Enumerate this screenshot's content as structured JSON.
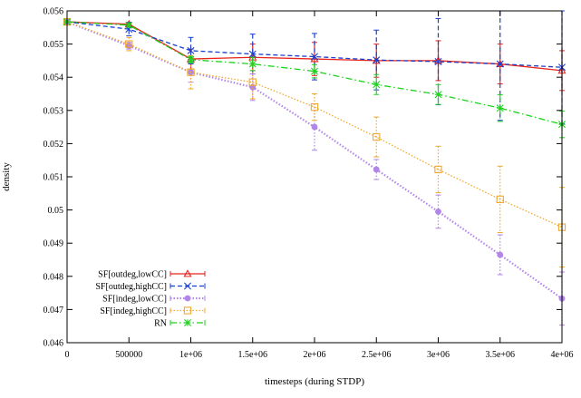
{
  "chart_data": {
    "type": "line",
    "title": "",
    "xlabel": "timesteps (during STDP)",
    "ylabel": "density",
    "xlim": [
      0,
      4000000
    ],
    "ylim": [
      0.046,
      0.056
    ],
    "grid": false,
    "legend_position": "bottom-left",
    "x": [
      0,
      500000,
      1000000,
      1500000,
      2000000,
      2500000,
      3000000,
      3500000,
      4000000
    ],
    "x_tick_labels": [
      "0",
      "500000",
      "1e+06",
      "1.5e+06",
      "2e+06",
      "2.5e+06",
      "3e+06",
      "3.5e+06",
      "4e+06"
    ],
    "y_tick_labels": [
      "0.046",
      "0.047",
      "0.048",
      "0.049",
      "0.05",
      "0.051",
      "0.052",
      "0.053",
      "0.054",
      "0.055",
      "0.056"
    ],
    "series": [
      {
        "name": "SF[outdeg,lowCC]",
        "color": "#e8251c",
        "marker": "triangle",
        "dash": "solid",
        "values": [
          0.05567,
          0.0556,
          0.05455,
          0.0546,
          0.05455,
          0.0545,
          0.0545,
          0.0544,
          0.0542
        ],
        "errors": [
          0,
          5e-05,
          0.0003,
          0.0004,
          0.0005,
          0.0005,
          0.0006,
          0.0006,
          0.0006
        ]
      },
      {
        "name": "SF[outdeg,highCC]",
        "color": "#1a3fd0",
        "marker": "x",
        "dash": "dashed",
        "values": [
          0.05567,
          0.05545,
          0.0548,
          0.0547,
          0.05462,
          0.05452,
          0.05447,
          0.0544,
          0.0543
        ],
        "errors": [
          0,
          0.0002,
          0.0004,
          0.0006,
          0.0007,
          0.0009,
          0.0013,
          0.0017,
          0.0017
        ]
      },
      {
        "name": "SF[indeg,lowCC]",
        "color": "#b286e8",
        "marker": "circle",
        "dash": "dotted",
        "values": [
          0.05567,
          0.05495,
          0.05415,
          0.0537,
          0.0525,
          0.05122,
          0.04995,
          0.04865,
          0.04733
        ],
        "errors": [
          0,
          0.0001,
          0.0003,
          0.0004,
          0.0007,
          0.0003,
          0.0005,
          0.0006,
          0.0008
        ]
      },
      {
        "name": "SF[indeg,highCC]",
        "color": "#f0a92e",
        "marker": "square",
        "dash": "dotted",
        "values": [
          0.05567,
          0.055,
          0.05415,
          0.05385,
          0.0531,
          0.0522,
          0.05122,
          0.05032,
          0.04948
        ],
        "errors": [
          0,
          0.0002,
          0.0005,
          0.0005,
          0.0004,
          0.0006,
          0.0007,
          0.001,
          0.0012
        ]
      },
      {
        "name": "RN",
        "color": "#1fd21f",
        "marker": "star",
        "dash": "dashdot",
        "values": [
          0.05567,
          0.05557,
          0.05453,
          0.0544,
          0.05418,
          0.05378,
          0.05348,
          0.05307,
          0.05258
        ],
        "errors": [
          0,
          5e-05,
          0.0001,
          0.0002,
          0.0002,
          0.0003,
          0.0003,
          0.0004,
          0.0004
        ]
      }
    ]
  }
}
